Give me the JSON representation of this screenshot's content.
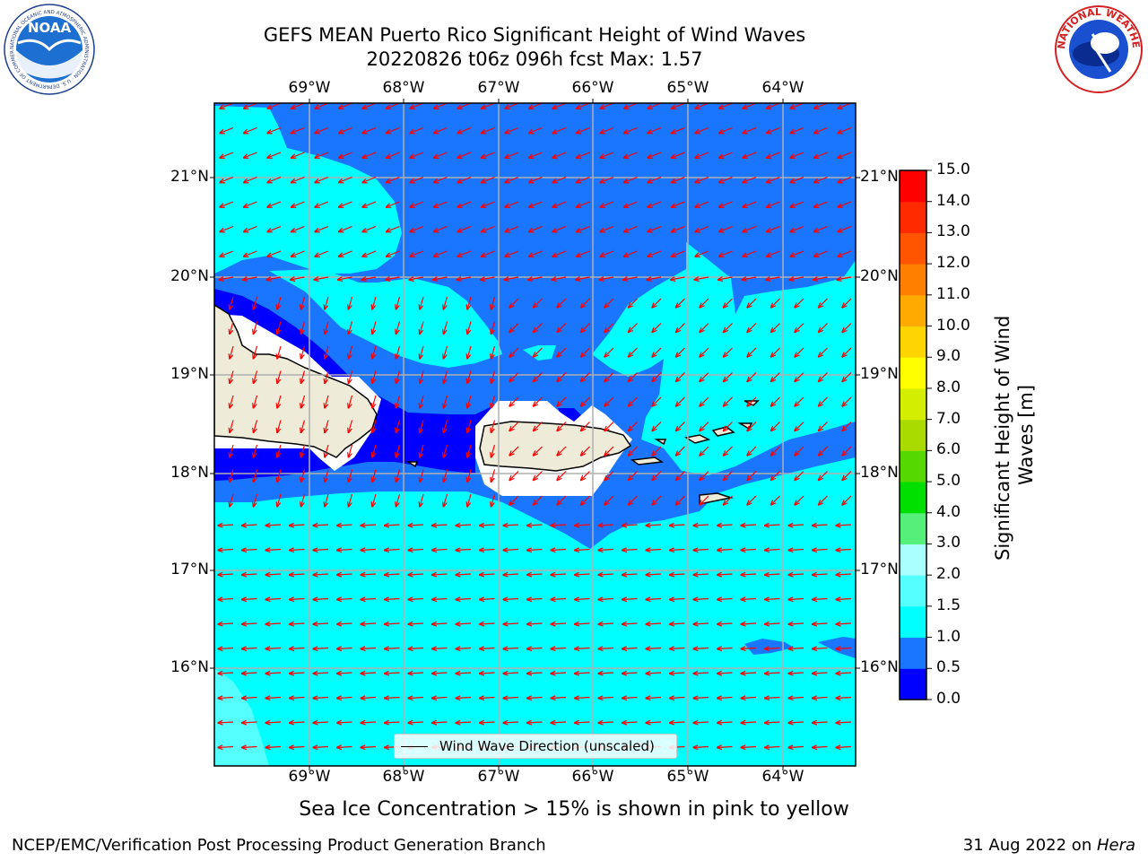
{
  "title": {
    "line1": "GEFS MEAN Puerto Rico Significant Height of Wind Waves",
    "line2": "20220826 t06z 096h fcst   Max: 1.57"
  },
  "map": {
    "lon_labels": [
      "69°W",
      "68°W",
      "67°W",
      "66°W",
      "65°W",
      "64°W"
    ],
    "lat_labels": [
      "21°N",
      "20°N",
      "19°N",
      "18°N",
      "17°N",
      "16°N"
    ],
    "legend": "Wind Wave Direction (unscaled)",
    "colors": {
      "band_0_05": "#0000ff",
      "band_05_1": "#1a75ff",
      "band_1_15": "#00ffff",
      "band_15_2": "#55ffff",
      "land": "#efebd9",
      "arrow": "#ff0000",
      "grid": "#b0b0b0"
    }
  },
  "colorbar": {
    "title": "Significant Height of Wind Waves [m]",
    "ticks": [
      "0.0",
      "0.5",
      "1.0",
      "1.5",
      "2.0",
      "3.0",
      "4.0",
      "5.0",
      "6.0",
      "7.0",
      "8.0",
      "9.0",
      "10.0",
      "11.0",
      "12.0",
      "13.0",
      "14.0",
      "15.0"
    ],
    "colors": [
      "#0000ff",
      "#1a75ff",
      "#00ffff",
      "#55ffff",
      "#aaffff",
      "#55f07a",
      "#00e000",
      "#55d800",
      "#aadb00",
      "#d4ee00",
      "#ffff00",
      "#ffd500",
      "#ffaa00",
      "#ff8000",
      "#ff5500",
      "#ff2a00",
      "#ff0000"
    ]
  },
  "footnote": "Sea Ice Concentration > 15% is shown in pink to yellow",
  "footer": {
    "left": "NCEP/EMC/Verification Post Processing Product Generation Branch",
    "right_prefix": "31 Aug 2022 on ",
    "right_machine": "Hera"
  },
  "logos": {
    "noaa_text": "NOAA",
    "noaa_ring": "NATIONAL OCEANIC AND ATMOSPHERIC ADMINISTRATION · U.S. DEPARTMENT OF COMMERCE",
    "nws_ring": "NATIONAL WEATHER SERVICE"
  }
}
